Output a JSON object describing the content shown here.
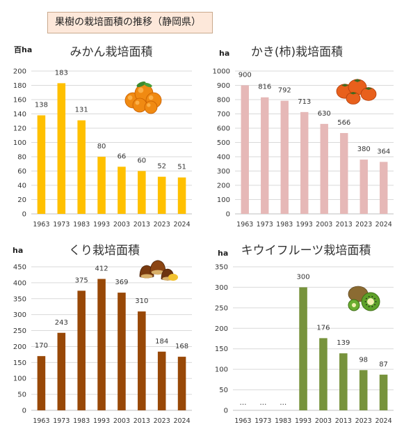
{
  "page_title": "果樹の栽培面積の推移（静岡県）",
  "icons": [
    "mikan-fruit-icon",
    "persimmon-fruit-icon",
    "chestnut-icon",
    "kiwi-fruit-icon"
  ],
  "chart_data": [
    {
      "type": "bar",
      "title": "みかん栽培面積",
      "unit": "百ha",
      "categories": [
        "1963",
        "1973",
        "1983",
        "1993",
        "2003",
        "2013",
        "2023",
        "2024"
      ],
      "values": [
        138,
        183,
        131,
        80,
        66,
        60,
        52,
        51
      ],
      "ylim": [
        0,
        200
      ],
      "ystep": 20,
      "grid": true,
      "color": "#ffc000"
    },
    {
      "type": "bar",
      "title": "かき(柿)栽培面積",
      "unit": "ha",
      "categories": [
        "1963",
        "1973",
        "1983",
        "1993",
        "2003",
        "2013",
        "2023",
        "2024"
      ],
      "values": [
        900,
        816,
        792,
        713,
        630,
        566,
        380,
        364
      ],
      "ylim": [
        0,
        1000
      ],
      "ystep": 100,
      "grid": true,
      "color": "#e6b8b7"
    },
    {
      "type": "bar",
      "title": "くり栽培面積",
      "unit": "ha",
      "categories": [
        "1963",
        "1973",
        "1983",
        "1993",
        "2003",
        "2013",
        "2023",
        "2024"
      ],
      "values": [
        170,
        243,
        375,
        412,
        369,
        310,
        184,
        168
      ],
      "ylim": [
        0,
        450
      ],
      "ystep": 50,
      "grid": true,
      "color": "#984807"
    },
    {
      "type": "bar",
      "title": "キウイフルーツ栽培面積",
      "unit": "ha",
      "categories": [
        "1963",
        "1973",
        "1983",
        "1993",
        "2003",
        "2013",
        "2023",
        "2024"
      ],
      "values": [
        null,
        null,
        null,
        300,
        176,
        139,
        98,
        87
      ],
      "missing_label": "…",
      "ylim": [
        0,
        350
      ],
      "ystep": 50,
      "grid": true,
      "color": "#77933c"
    }
  ]
}
